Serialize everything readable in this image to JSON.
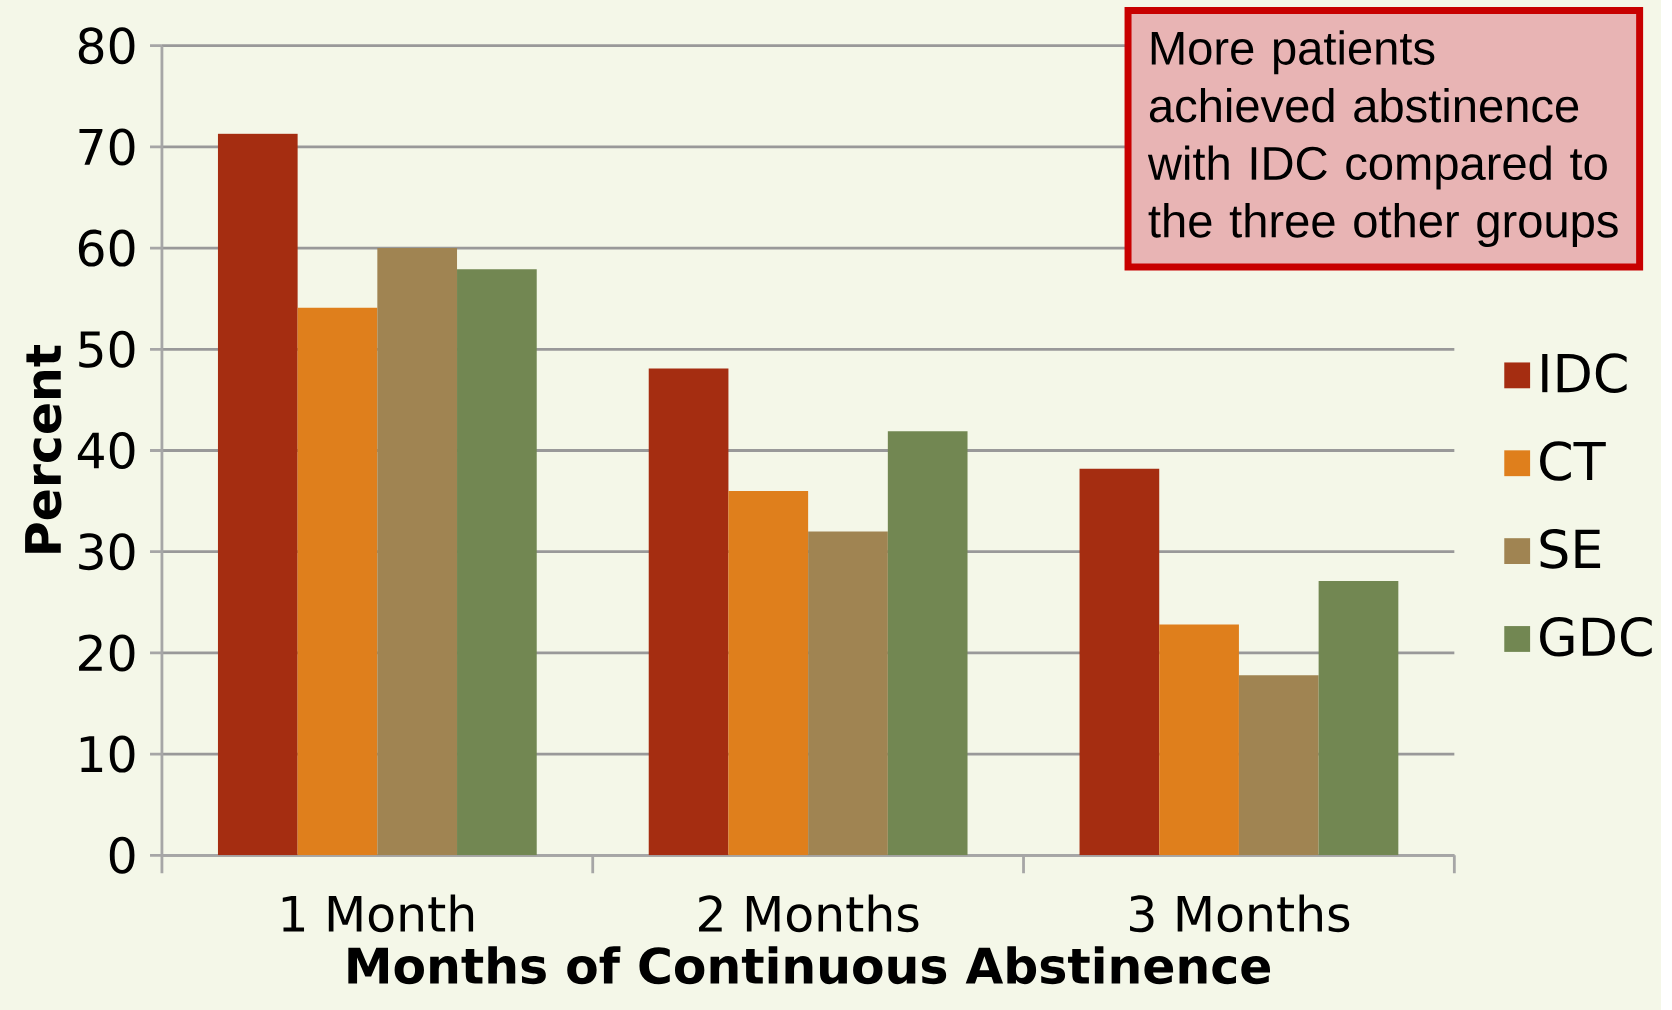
{
  "chart_data": {
    "type": "bar",
    "xlabel": "Months of Continuous Abstinence",
    "ylabel": "Percent",
    "categories": [
      "1 Month",
      "2 Months",
      "3 Months"
    ],
    "series": [
      {
        "name": "IDC",
        "color": "#a52d11",
        "values": [
          71.3,
          48.1,
          38.2
        ]
      },
      {
        "name": "CT",
        "color": "#df7f1c",
        "values": [
          54.1,
          36,
          22.8
        ]
      },
      {
        "name": "SE",
        "color": "#a08452",
        "values": [
          60,
          32,
          17.8
        ]
      },
      {
        "name": "GDC",
        "color": "#728752",
        "values": [
          57.9,
          41.9,
          27.1
        ]
      }
    ],
    "ylim": [
      0,
      80
    ],
    "yticks": [
      0,
      10,
      20,
      30,
      40,
      50,
      60,
      70,
      80
    ],
    "grid": "y",
    "legend": "right",
    "annotations": [
      "More patients achieved abstinence with IDC compared to the three other groups"
    ]
  }
}
